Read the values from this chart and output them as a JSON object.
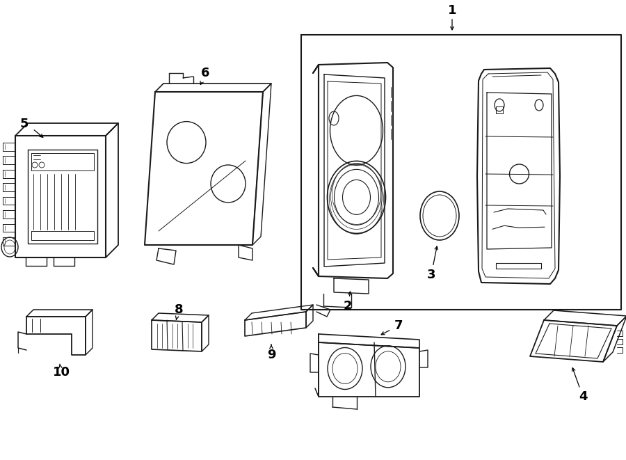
{
  "bg_color": "#ffffff",
  "lc": "#1a1a1a",
  "lw": 1.0,
  "fig_w": 9.0,
  "fig_h": 6.61,
  "dpi": 100
}
